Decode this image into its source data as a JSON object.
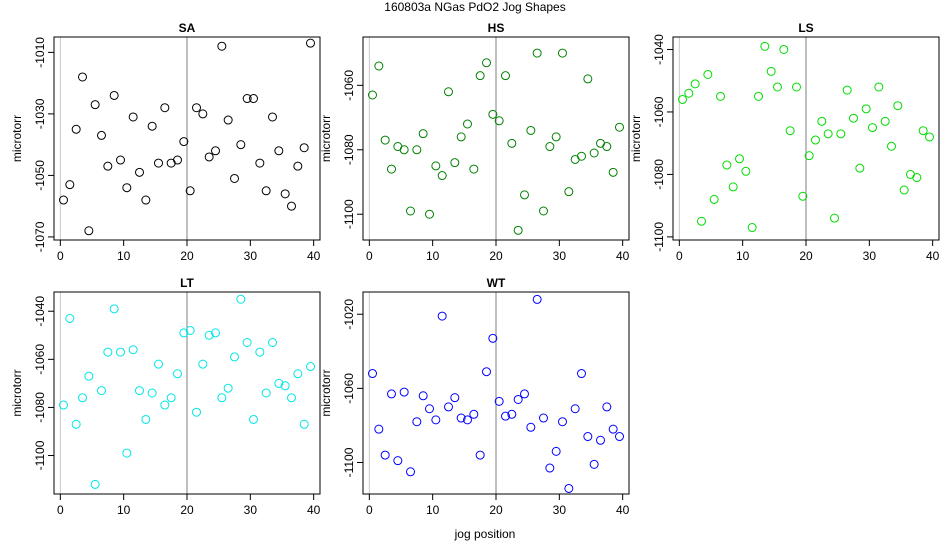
{
  "figure": {
    "title": "160803a   NGas PdO2 Jog Shapes",
    "xlabel": "jog position"
  },
  "chart_data": [
    {
      "type": "scatter",
      "title": "SA",
      "ylabel": "microtorr",
      "color": "#000000",
      "xlim": [
        -1,
        41
      ],
      "ylim": [
        -1071,
        -1005
      ],
      "x_ticks": [
        0,
        10,
        20,
        30,
        40
      ],
      "y_ticks": [
        -1070,
        -1050,
        -1030,
        -1010
      ],
      "vline": 20,
      "x": [
        0.5,
        1.5,
        2.5,
        3.5,
        4.5,
        5.5,
        6.5,
        7.5,
        8.5,
        9.5,
        10.5,
        11.5,
        12.5,
        13.5,
        14.5,
        15.5,
        16.5,
        17.5,
        18.5,
        19.5,
        20.5,
        21.5,
        22.5,
        23.5,
        24.5,
        25.5,
        26.5,
        27.5,
        28.5,
        29.5,
        30.5,
        31.5,
        32.5,
        33.5,
        34.5,
        35.5,
        36.5,
        37.5,
        38.5,
        39.5
      ],
      "y": [
        -1058,
        -1053,
        -1035,
        -1018,
        -1068,
        -1027,
        -1037,
        -1047,
        -1024,
        -1045,
        -1054,
        -1031,
        -1049,
        -1058,
        -1034,
        -1046,
        -1028,
        -1046,
        -1045,
        -1039,
        -1055,
        -1028,
        -1030,
        -1044,
        -1042,
        -1008,
        -1032,
        -1051,
        -1040,
        -1025,
        -1025,
        -1046,
        -1055,
        -1031,
        -1042,
        -1056,
        -1060,
        -1047,
        -1041,
        -1007
      ]
    },
    {
      "type": "scatter",
      "title": "HS",
      "ylabel": "microtorr",
      "color": "#008000",
      "xlim": [
        -1,
        41
      ],
      "ylim": [
        -1108,
        -1045
      ],
      "x_ticks": [
        0,
        10,
        20,
        30,
        40
      ],
      "y_ticks": [
        -1100,
        -1080,
        -1060
      ],
      "vline": 20,
      "x": [
        0.5,
        1.5,
        2.5,
        3.5,
        4.5,
        5.5,
        6.5,
        7.5,
        8.5,
        9.5,
        10.5,
        11.5,
        12.5,
        13.5,
        14.5,
        15.5,
        16.5,
        17.5,
        18.5,
        19.5,
        20.5,
        21.5,
        22.5,
        23.5,
        24.5,
        25.5,
        26.5,
        27.5,
        28.5,
        29.5,
        30.5,
        31.5,
        32.5,
        33.5,
        34.5,
        35.5,
        36.5,
        37.5,
        38.5,
        39.5
      ],
      "y": [
        -1063,
        -1054,
        -1077,
        -1086,
        -1079,
        -1080,
        -1099,
        -1080,
        -1075,
        -1100,
        -1085,
        -1088,
        -1062,
        -1084,
        -1076,
        -1072,
        -1086,
        -1057,
        -1053,
        -1069,
        -1071,
        -1057,
        -1078,
        -1105,
        -1094,
        -1074,
        -1050,
        -1099,
        -1079,
        -1076,
        -1050,
        -1093,
        -1083,
        -1082,
        -1058,
        -1081,
        -1078,
        -1079,
        -1087,
        -1073
      ]
    },
    {
      "type": "scatter",
      "title": "LS",
      "ylabel": "microtorr",
      "color": "#00dd00",
      "xlim": [
        -1,
        41
      ],
      "ylim": [
        -1101,
        -1036
      ],
      "x_ticks": [
        0,
        10,
        20,
        30,
        40
      ],
      "y_ticks": [
        -1100,
        -1080,
        -1060,
        -1040
      ],
      "vline": 20,
      "x": [
        0.5,
        1.5,
        2.5,
        3.5,
        4.5,
        5.5,
        6.5,
        7.5,
        8.5,
        9.5,
        10.5,
        11.5,
        12.5,
        13.5,
        14.5,
        15.5,
        16.5,
        17.5,
        18.5,
        19.5,
        20.5,
        21.5,
        22.5,
        23.5,
        24.5,
        25.5,
        26.5,
        27.5,
        28.5,
        29.5,
        30.5,
        31.5,
        32.5,
        33.5,
        34.5,
        35.5,
        36.5,
        37.5,
        38.5,
        39.5
      ],
      "y": [
        -1056,
        -1054,
        -1051,
        -1095,
        -1048,
        -1088,
        -1055,
        -1077,
        -1084,
        -1075,
        -1079,
        -1097,
        -1055,
        -1039,
        -1047,
        -1052,
        -1040,
        -1066,
        -1052,
        -1087,
        -1074,
        -1069,
        -1063,
        -1067,
        -1094,
        -1067,
        -1053,
        -1062,
        -1078,
        -1059,
        -1065,
        -1052,
        -1063,
        -1071,
        -1058,
        -1085,
        -1080,
        -1081,
        -1066,
        -1068
      ]
    },
    {
      "type": "scatter",
      "title": "LT",
      "ylabel": "microtorr",
      "color": "#00e6e6",
      "xlim": [
        -1,
        41
      ],
      "ylim": [
        -1116,
        -1032
      ],
      "x_ticks": [
        0,
        10,
        20,
        30,
        40
      ],
      "y_ticks": [
        -1100,
        -1080,
        -1060,
        -1040
      ],
      "vline": 20,
      "x": [
        0.5,
        1.5,
        2.5,
        3.5,
        4.5,
        5.5,
        6.5,
        7.5,
        8.5,
        9.5,
        10.5,
        11.5,
        12.5,
        13.5,
        14.5,
        15.5,
        16.5,
        17.5,
        18.5,
        19.5,
        20.5,
        21.5,
        22.5,
        23.5,
        24.5,
        25.5,
        26.5,
        27.5,
        28.5,
        29.5,
        30.5,
        31.5,
        32.5,
        33.5,
        34.5,
        35.5,
        36.5,
        37.5,
        38.5,
        39.5
      ],
      "y": [
        -1079,
        -1043,
        -1087,
        -1076,
        -1067,
        -1112,
        -1073,
        -1057,
        -1039,
        -1057,
        -1099,
        -1056,
        -1073,
        -1085,
        -1074,
        -1062,
        -1079,
        -1076,
        -1066,
        -1049,
        -1048,
        -1082,
        -1062,
        -1050,
        -1049,
        -1076,
        -1072,
        -1059,
        -1035,
        -1053,
        -1085,
        -1057,
        -1074,
        -1053,
        -1070,
        -1071,
        -1076,
        -1066,
        -1087,
        -1063
      ]
    },
    {
      "type": "scatter",
      "title": "WT",
      "ylabel": "microtorr",
      "color": "#0000ff",
      "xlim": [
        -1,
        41
      ],
      "ylim": [
        -1117,
        -1008
      ],
      "x_ticks": [
        0,
        10,
        20,
        30,
        40
      ],
      "y_ticks": [
        -1100,
        -1060,
        -1020
      ],
      "vline": 20,
      "x": [
        0.5,
        1.5,
        2.5,
        3.5,
        4.5,
        5.5,
        6.5,
        7.5,
        8.5,
        9.5,
        10.5,
        11.5,
        12.5,
        13.5,
        14.5,
        15.5,
        16.5,
        17.5,
        18.5,
        19.5,
        20.5,
        21.5,
        22.5,
        23.5,
        24.5,
        25.5,
        26.5,
        27.5,
        28.5,
        29.5,
        30.5,
        31.5,
        32.5,
        33.5,
        34.5,
        35.5,
        36.5,
        37.5,
        38.5,
        39.5
      ],
      "y": [
        -1052,
        -1082,
        -1096,
        -1063,
        -1099,
        -1062,
        -1105,
        -1078,
        -1064,
        -1071,
        -1077,
        -1021,
        -1070,
        -1065,
        -1076,
        -1077,
        -1074,
        -1096,
        -1051,
        -1033,
        -1067,
        -1075,
        -1074,
        -1066,
        -1063,
        -1081,
        -1012,
        -1076,
        -1103,
        -1094,
        -1078,
        -1114,
        -1071,
        -1052,
        -1086,
        -1101,
        -1088,
        -1070,
        -1082,
        -1086
      ]
    }
  ]
}
